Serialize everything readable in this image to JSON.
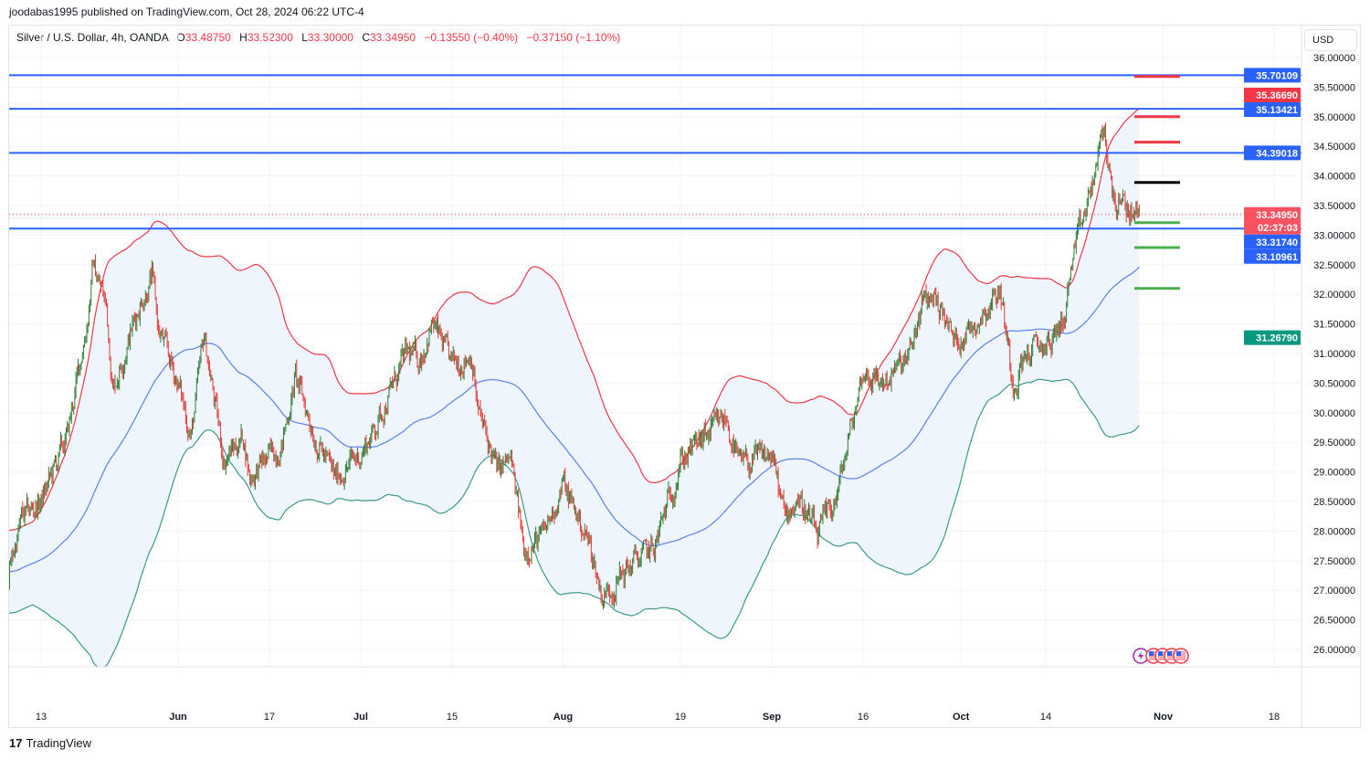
{
  "header": {
    "published": "joodabas1995 published on TradingView.com, Oct 28, 2024 06:22 UTC-4",
    "symbol": "Silver / U.S. Dollar, 4h, OANDA",
    "o_label": "O",
    "o": "33.48750",
    "h_label": "H",
    "h": "33.52300",
    "l_label": "L",
    "l": "33.30000",
    "c_label": "C",
    "c": "33.34950",
    "change": "−0.13550 (−0.40%)",
    "change2": "−0.37150 (−1.10%)"
  },
  "currency": "USD",
  "footer": {
    "logo": "TradingView"
  },
  "colors": {
    "up": "#2e7d32",
    "down": "#e53935",
    "level_line": "#2962ff",
    "bb_upper": "#f23645",
    "bb_basis": "#5b7ff0",
    "bb_lower": "#3a9b86",
    "bb_fill": "#eaf3fc",
    "target_red": "#f23645",
    "target_black": "#000000",
    "target_green": "#4caf50"
  },
  "chart_data": {
    "type": "candlestick",
    "symbol": "XAGUSD",
    "timeframe": "4h",
    "ylim": [
      25.5,
      36.5
    ],
    "grid": true,
    "y_ticks": [
      "26.00000",
      "26.50000",
      "27.00000",
      "27.50000",
      "28.00000",
      "28.50000",
      "29.00000",
      "29.50000",
      "30.00000",
      "30.50000",
      "31.00000",
      "31.50000",
      "32.00000",
      "32.50000",
      "33.00000",
      "33.50000",
      "34.00000",
      "34.50000",
      "35.00000",
      "35.50000",
      "36.00000"
    ],
    "x_ticks": [
      {
        "label": "13",
        "date": "2024-05-13"
      },
      {
        "label": "Jun",
        "date": "2024-06-03"
      },
      {
        "label": "17",
        "date": "2024-06-17"
      },
      {
        "label": "Jul",
        "date": "2024-07-01"
      },
      {
        "label": "15",
        "date": "2024-07-15"
      },
      {
        "label": "Aug",
        "date": "2024-08-01"
      },
      {
        "label": "19",
        "date": "2024-08-19"
      },
      {
        "label": "Sep",
        "date": "2024-09-02"
      },
      {
        "label": "16",
        "date": "2024-09-16"
      },
      {
        "label": "Oct",
        "date": "2024-10-01"
      },
      {
        "label": "14",
        "date": "2024-10-14"
      },
      {
        "label": "Nov",
        "date": "2024-11-01"
      },
      {
        "label": "18",
        "date": "2024-11-18"
      }
    ],
    "close_path": [
      [
        "2024-05-08",
        27.3
      ],
      [
        "2024-05-10",
        28.2
      ],
      [
        "2024-05-13",
        28.5
      ],
      [
        "2024-05-17",
        29.6
      ],
      [
        "2024-05-20",
        31.5
      ],
      [
        "2024-05-21",
        32.5
      ],
      [
        "2024-05-23",
        31.8
      ],
      [
        "2024-05-24",
        30.4
      ],
      [
        "2024-05-28",
        31.8
      ],
      [
        "2024-05-30",
        32.3
      ],
      [
        "2024-05-31",
        31.4
      ],
      [
        "2024-06-03",
        30.5
      ],
      [
        "2024-06-05",
        29.6
      ],
      [
        "2024-06-07",
        31.3
      ],
      [
        "2024-06-10",
        29.2
      ],
      [
        "2024-06-13",
        29.6
      ],
      [
        "2024-06-14",
        28.9
      ],
      [
        "2024-06-19",
        29.5
      ],
      [
        "2024-06-21",
        30.6
      ],
      [
        "2024-06-24",
        29.6
      ],
      [
        "2024-06-27",
        28.9
      ],
      [
        "2024-07-01",
        29.3
      ],
      [
        "2024-07-03",
        29.7
      ],
      [
        "2024-07-08",
        31.0
      ],
      [
        "2024-07-10",
        30.9
      ],
      [
        "2024-07-12",
        31.5
      ],
      [
        "2024-07-15",
        30.8
      ],
      [
        "2024-07-18",
        31.0
      ],
      [
        "2024-07-19",
        30.0
      ],
      [
        "2024-07-22",
        29.0
      ],
      [
        "2024-07-24",
        29.2
      ],
      [
        "2024-07-26",
        27.7
      ],
      [
        "2024-07-29",
        27.9
      ],
      [
        "2024-08-01",
        28.8
      ],
      [
        "2024-08-05",
        27.8
      ],
      [
        "2024-08-07",
        26.9
      ],
      [
        "2024-08-08",
        27.0
      ],
      [
        "2024-08-12",
        27.5
      ],
      [
        "2024-08-15",
        27.7
      ],
      [
        "2024-08-19",
        29.2
      ],
      [
        "2024-08-22",
        29.5
      ],
      [
        "2024-08-26",
        29.9
      ],
      [
        "2024-08-28",
        29.1
      ],
      [
        "2024-09-02",
        29.3
      ],
      [
        "2024-09-04",
        28.2
      ],
      [
        "2024-09-06",
        28.6
      ],
      [
        "2024-09-09",
        27.9
      ],
      [
        "2024-09-12",
        28.6
      ],
      [
        "2024-09-16",
        30.7
      ],
      [
        "2024-09-19",
        30.5
      ],
      [
        "2024-09-23",
        30.9
      ],
      [
        "2024-09-25",
        31.8
      ],
      [
        "2024-09-27",
        32.0
      ],
      [
        "2024-09-30",
        31.2
      ],
      [
        "2024-10-03",
        31.5
      ],
      [
        "2024-10-07",
        32.1
      ],
      [
        "2024-10-09",
        30.5
      ],
      [
        "2024-10-11",
        31.0
      ],
      [
        "2024-10-15",
        31.2
      ],
      [
        "2024-10-17",
        31.7
      ],
      [
        "2024-10-18",
        32.5
      ],
      [
        "2024-10-21",
        33.8
      ],
      [
        "2024-10-23",
        34.8
      ],
      [
        "2024-10-24",
        33.8
      ],
      [
        "2024-10-25",
        33.5
      ],
      [
        "2024-10-28",
        33.35
      ]
    ],
    "last_price": 33.3495,
    "countdown": "02:37:03",
    "horizontal_levels": [
      35.70109,
      35.13421,
      34.39018,
      33.10961
    ],
    "bollinger": {
      "upper": 35.3669,
      "basis": 33.3174,
      "lower": 31.2679
    },
    "price_labels": [
      {
        "value": "35.70109",
        "kind": "level"
      },
      {
        "value": "35.36690",
        "kind": "bb_upper"
      },
      {
        "value": "35.13421",
        "kind": "level"
      },
      {
        "value": "34.39018",
        "kind": "level"
      },
      {
        "value": "33.34950",
        "kind": "last"
      },
      {
        "value": "33.31740",
        "kind": "bb_basis"
      },
      {
        "value": "33.10961",
        "kind": "level"
      },
      {
        "value": "31.26790",
        "kind": "bb_lower"
      }
    ],
    "targets": [
      {
        "price": 35.68,
        "kind": "red"
      },
      {
        "price": 35.0,
        "kind": "red"
      },
      {
        "price": 34.57,
        "kind": "red"
      },
      {
        "price": 33.89,
        "kind": "black"
      },
      {
        "price": 33.21,
        "kind": "green"
      },
      {
        "price": 32.79,
        "kind": "green"
      },
      {
        "price": 32.1,
        "kind": "green"
      }
    ],
    "events": [
      "lightning-event",
      "us-flag-event",
      "us-flag-event",
      "us-flag-event",
      "us-flag-event"
    ]
  }
}
